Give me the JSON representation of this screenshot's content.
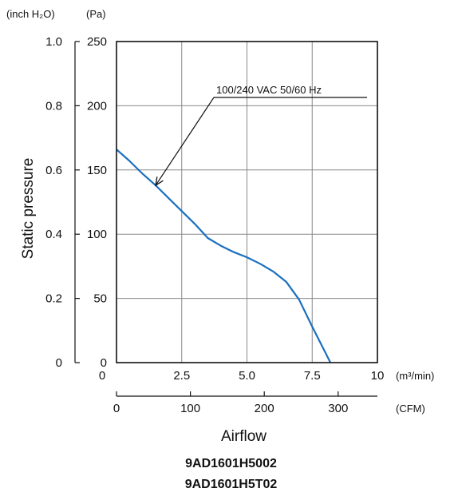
{
  "chart_data": {
    "type": "line",
    "title": "",
    "ylabel": "Static pressure",
    "xlabel": "Airflow",
    "y_units": {
      "primary": "(Pa)",
      "secondary": "(inch H₂O)"
    },
    "x_units": {
      "primary": "(m³/min)",
      "secondary": "(CFM)"
    },
    "pa_ticks": [
      "0",
      "50",
      "100",
      "150",
      "200",
      "250"
    ],
    "pa_tick_values": [
      0,
      50,
      100,
      150,
      200,
      250
    ],
    "inch_ticks": [
      "0",
      "0.2",
      "0.4",
      "0.6",
      "0.8",
      "1.0"
    ],
    "inch_tick_values": [
      0,
      0.2,
      0.4,
      0.6,
      0.8,
      1.0
    ],
    "m3_ticks": [
      "0",
      "2.5",
      "5.0",
      "7.5",
      "10"
    ],
    "m3_tick_values": [
      0,
      2.5,
      5.0,
      7.5,
      10
    ],
    "cfm_ticks": [
      "0",
      "100",
      "200",
      "300"
    ],
    "cfm_tick_values": [
      0,
      100,
      200,
      300
    ],
    "xlim": [
      0,
      10
    ],
    "ylim": [
      0,
      250
    ],
    "grid": true,
    "series": [
      {
        "name": "100/240 VAC  50/60 Hz",
        "color": "#1a6fc0",
        "x": [
          0,
          0.5,
          1.0,
          1.5,
          2.0,
          2.5,
          3.0,
          3.5,
          4.0,
          4.5,
          5.0,
          5.5,
          6.0,
          6.5,
          7.0,
          7.5,
          8.0,
          8.2
        ],
        "y": [
          166,
          157,
          147,
          138,
          128,
          118,
          108,
          97,
          91,
          86,
          82,
          77,
          71,
          63,
          49,
          28,
          8,
          0
        ]
      }
    ],
    "annotation": {
      "text": "100/240 VAC  50/60 Hz",
      "arrow_target": [
        1.5,
        138
      ]
    }
  },
  "models": [
    "9AD1601H5002",
    "9AD1601H5T02"
  ]
}
